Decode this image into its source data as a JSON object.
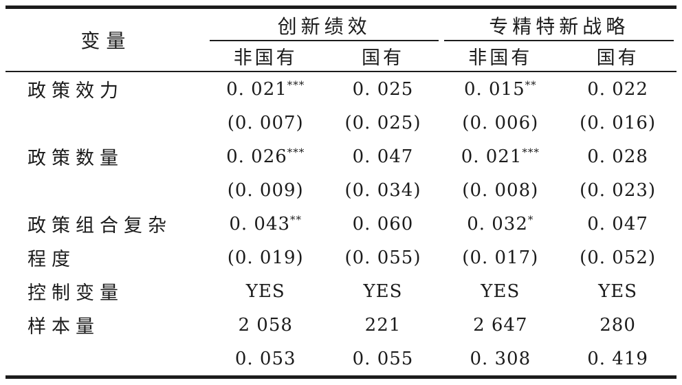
{
  "table": {
    "header": {
      "variable_col": "变量",
      "groups": [
        {
          "label": "创新绩效",
          "subs": [
            "非国有",
            "国有"
          ]
        },
        {
          "label": "专精特新战略",
          "subs": [
            "非国有",
            "国有"
          ]
        }
      ]
    },
    "rows": [
      {
        "label": "政策效力",
        "cells": [
          {
            "v": "0. 021",
            "s": "***"
          },
          {
            "v": "0. 025"
          },
          {
            "v": "0. 015",
            "s": "**"
          },
          {
            "v": "0. 022"
          }
        ]
      },
      {
        "label": "",
        "cells": [
          {
            "v": "(0. 007)"
          },
          {
            "v": "(0. 025)"
          },
          {
            "v": "(0. 006)"
          },
          {
            "v": "(0. 016)"
          }
        ]
      },
      {
        "label": "政策数量",
        "cells": [
          {
            "v": "0. 026",
            "s": "***"
          },
          {
            "v": "0. 047"
          },
          {
            "v": "0. 021",
            "s": "***"
          },
          {
            "v": "0. 028"
          }
        ]
      },
      {
        "label": "",
        "cells": [
          {
            "v": "(0. 009)"
          },
          {
            "v": "(0. 034)"
          },
          {
            "v": "(0. 008)"
          },
          {
            "v": "(0. 023)"
          }
        ]
      },
      {
        "label": "政策组合复杂",
        "cells": [
          {
            "v": "0. 043",
            "s": "**"
          },
          {
            "v": "0. 060"
          },
          {
            "v": "0. 032",
            "s": "*"
          },
          {
            "v": "0. 047"
          }
        ]
      },
      {
        "label": "程度",
        "cells": [
          {
            "v": "(0. 019)"
          },
          {
            "v": "(0. 055)"
          },
          {
            "v": "(0. 017)"
          },
          {
            "v": "(0. 052)"
          }
        ]
      },
      {
        "label": "控制变量",
        "cells": [
          {
            "v": "YES"
          },
          {
            "v": "YES"
          },
          {
            "v": "YES"
          },
          {
            "v": "YES"
          }
        ]
      },
      {
        "label": "样本量",
        "cells": [
          {
            "v": "2 058"
          },
          {
            "v": "221"
          },
          {
            "v": "2 647"
          },
          {
            "v": "280"
          }
        ]
      },
      {
        "label": "",
        "cells": [
          {
            "v": "0. 053"
          },
          {
            "v": "0. 055"
          },
          {
            "v": "0. 308"
          },
          {
            "v": "0. 419"
          }
        ]
      }
    ]
  }
}
